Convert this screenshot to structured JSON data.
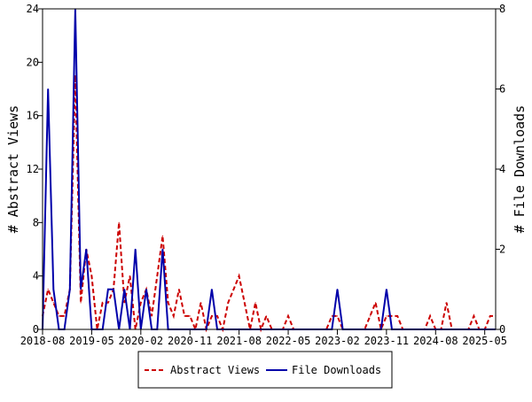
{
  "chart_data": {
    "type": "line",
    "title": "",
    "xlabel": "",
    "ylabel": "# Abstract Views",
    "y2label": "# File Downloads",
    "x_tick_labels": [
      "2018-08",
      "2019-05",
      "2020-02",
      "2020-11",
      "2021-08",
      "2022-05",
      "2023-02",
      "2023-11",
      "2024-08",
      "2025-05"
    ],
    "ylim": [
      0,
      24
    ],
    "y_ticks": [
      "0",
      "4",
      "8",
      "12",
      "16",
      "20",
      "24"
    ],
    "y2lim": [
      0,
      8
    ],
    "y2_ticks": [
      "0",
      "2",
      "4",
      "6",
      "8"
    ],
    "grid": false,
    "legend_position": "bottom",
    "series": [
      {
        "name": "Abstract Views",
        "axis": "left",
        "color": "#cc0000",
        "style": "dashed",
        "x": [
          "2018-08",
          "2018-09",
          "2018-10",
          "2018-11",
          "2018-12",
          "2019-01",
          "2019-02",
          "2019-03",
          "2019-04",
          "2019-05",
          "2019-06",
          "2019-07",
          "2019-08",
          "2019-09",
          "2019-10",
          "2019-11",
          "2019-12",
          "2020-01",
          "2020-02",
          "2020-03",
          "2020-04",
          "2020-05",
          "2020-06",
          "2020-07",
          "2020-08",
          "2020-09",
          "2020-10",
          "2020-11",
          "2020-12",
          "2021-01",
          "2021-02",
          "2021-03",
          "2021-04",
          "2021-05",
          "2021-06",
          "2021-07",
          "2021-08",
          "2021-09",
          "2021-10",
          "2021-11",
          "2021-12",
          "2022-01",
          "2022-02",
          "2022-03",
          "2022-04",
          "2022-05",
          "2022-06",
          "2022-07",
          "2022-08",
          "2022-09",
          "2022-10",
          "2022-11",
          "2022-12",
          "2023-01",
          "2023-02",
          "2023-03",
          "2023-04",
          "2023-05",
          "2023-06",
          "2023-07",
          "2023-08",
          "2023-09",
          "2023-10",
          "2023-11",
          "2023-12",
          "2024-01",
          "2024-02",
          "2024-03",
          "2024-04",
          "2024-05",
          "2024-06",
          "2024-07",
          "2024-08",
          "2024-09",
          "2024-10",
          "2024-11",
          "2024-12",
          "2025-01",
          "2025-02",
          "2025-03",
          "2025-04",
          "2025-05",
          "2025-06",
          "2025-07"
        ],
        "y": [
          1,
          3,
          2,
          1,
          1,
          3,
          19,
          2,
          6,
          4,
          0,
          2,
          2,
          3,
          8,
          2,
          4,
          0,
          2,
          3,
          1,
          4,
          7,
          2,
          1,
          3,
          1,
          1,
          0,
          2,
          0,
          1,
          1,
          0,
          2,
          3,
          4,
          2,
          0,
          2,
          0,
          1,
          0,
          0,
          0,
          1,
          0,
          0,
          0,
          0,
          0,
          0,
          0,
          1,
          1,
          0,
          0,
          0,
          0,
          0,
          1,
          2,
          0,
          1,
          1,
          1,
          0,
          0,
          0,
          0,
          0,
          1,
          0,
          0,
          2,
          0,
          0,
          0,
          0,
          1,
          0,
          0,
          1,
          1
        ]
      },
      {
        "name": "File Downloads",
        "axis": "right",
        "color": "#0000aa",
        "style": "solid",
        "x": [
          "2018-08",
          "2018-09",
          "2018-10",
          "2018-11",
          "2018-12",
          "2019-01",
          "2019-02",
          "2019-03",
          "2019-04",
          "2019-05",
          "2019-06",
          "2019-07",
          "2019-08",
          "2019-09",
          "2019-10",
          "2019-11",
          "2019-12",
          "2020-01",
          "2020-02",
          "2020-03",
          "2020-04",
          "2020-05",
          "2020-06",
          "2020-07",
          "2020-08",
          "2020-09",
          "2020-10",
          "2020-11",
          "2020-12",
          "2021-01",
          "2021-02",
          "2021-03",
          "2021-04",
          "2021-05",
          "2021-06",
          "2021-07",
          "2021-08",
          "2021-09",
          "2021-10",
          "2021-11",
          "2021-12",
          "2022-01",
          "2022-02",
          "2022-03",
          "2022-04",
          "2022-05",
          "2022-06",
          "2022-07",
          "2022-08",
          "2022-09",
          "2022-10",
          "2022-11",
          "2022-12",
          "2023-01",
          "2023-02",
          "2023-03",
          "2023-04",
          "2023-05",
          "2023-06",
          "2023-07",
          "2023-08",
          "2023-09",
          "2023-10",
          "2023-11",
          "2023-12",
          "2024-01",
          "2024-02",
          "2024-03",
          "2024-04",
          "2024-05",
          "2024-06",
          "2024-07",
          "2024-08",
          "2024-09",
          "2024-10",
          "2024-11",
          "2024-12",
          "2025-01",
          "2025-02",
          "2025-03",
          "2025-04",
          "2025-05",
          "2025-06",
          "2025-07"
        ],
        "y": [
          0,
          6,
          1,
          0,
          0,
          1,
          8,
          1,
          2,
          0,
          0,
          0,
          1,
          1,
          0,
          1,
          0,
          2,
          0,
          1,
          0,
          0,
          2,
          0,
          0,
          0,
          0,
          0,
          0,
          0,
          0,
          1,
          0,
          0,
          0,
          0,
          0,
          0,
          0,
          0,
          0,
          0,
          0,
          0,
          0,
          0,
          0,
          0,
          0,
          0,
          0,
          0,
          0,
          0,
          1,
          0,
          0,
          0,
          0,
          0,
          0,
          0,
          0,
          1,
          0,
          0,
          0,
          0,
          0,
          0,
          0,
          0,
          0,
          0,
          0,
          0,
          0,
          0,
          0,
          0,
          0,
          0,
          0,
          0
        ]
      }
    ]
  }
}
